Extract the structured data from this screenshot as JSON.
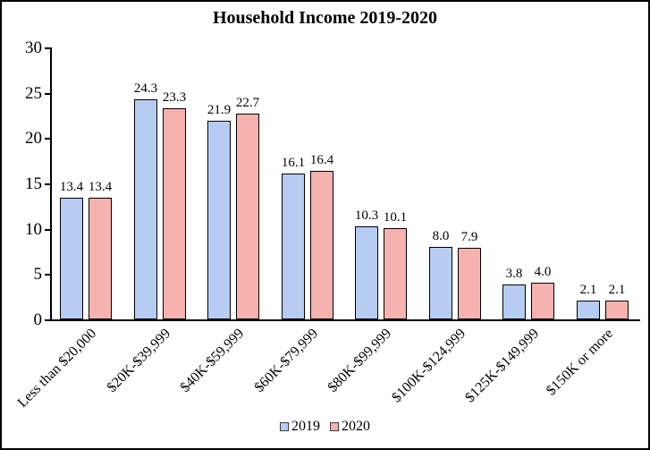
{
  "chart_data": {
    "type": "bar",
    "title": "Household Income 2019-2020",
    "categories": [
      "Less than $20,000",
      "$20K-$39,999",
      "$40K-$59,999",
      "$60K-$79,999",
      "$80K-$99,999",
      "$100K-$124,999",
      "$125K-$149,999",
      "$150K or more"
    ],
    "series": [
      {
        "name": "2019",
        "color": "#b6ccf2",
        "values": [
          13.4,
          24.3,
          21.9,
          16.1,
          10.3,
          8.0,
          3.8,
          2.1
        ],
        "labels": [
          "13.4",
          "24.3",
          "21.9",
          "16.1",
          "10.3",
          "8.0",
          "3.8",
          "2.1"
        ]
      },
      {
        "name": "2020",
        "color": "#f5b2ae",
        "values": [
          13.4,
          23.3,
          22.7,
          16.4,
          10.1,
          7.9,
          4.0,
          2.1
        ],
        "labels": [
          "13.4",
          "23.3",
          "22.7",
          "16.4",
          "10.1",
          "7.9",
          "4.0",
          "2.1"
        ]
      }
    ],
    "xlabel": "",
    "ylabel": "",
    "ylim": [
      0,
      30
    ],
    "y_ticks": [
      "0",
      "5",
      "10",
      "15",
      "20",
      "25",
      "30"
    ],
    "grid": false,
    "legend_position": "bottom",
    "colors": {
      "axis": "#000000",
      "bar_border": "#000000",
      "text": "#000000",
      "frame_border": "#000000",
      "background": "#ffffff"
    }
  }
}
